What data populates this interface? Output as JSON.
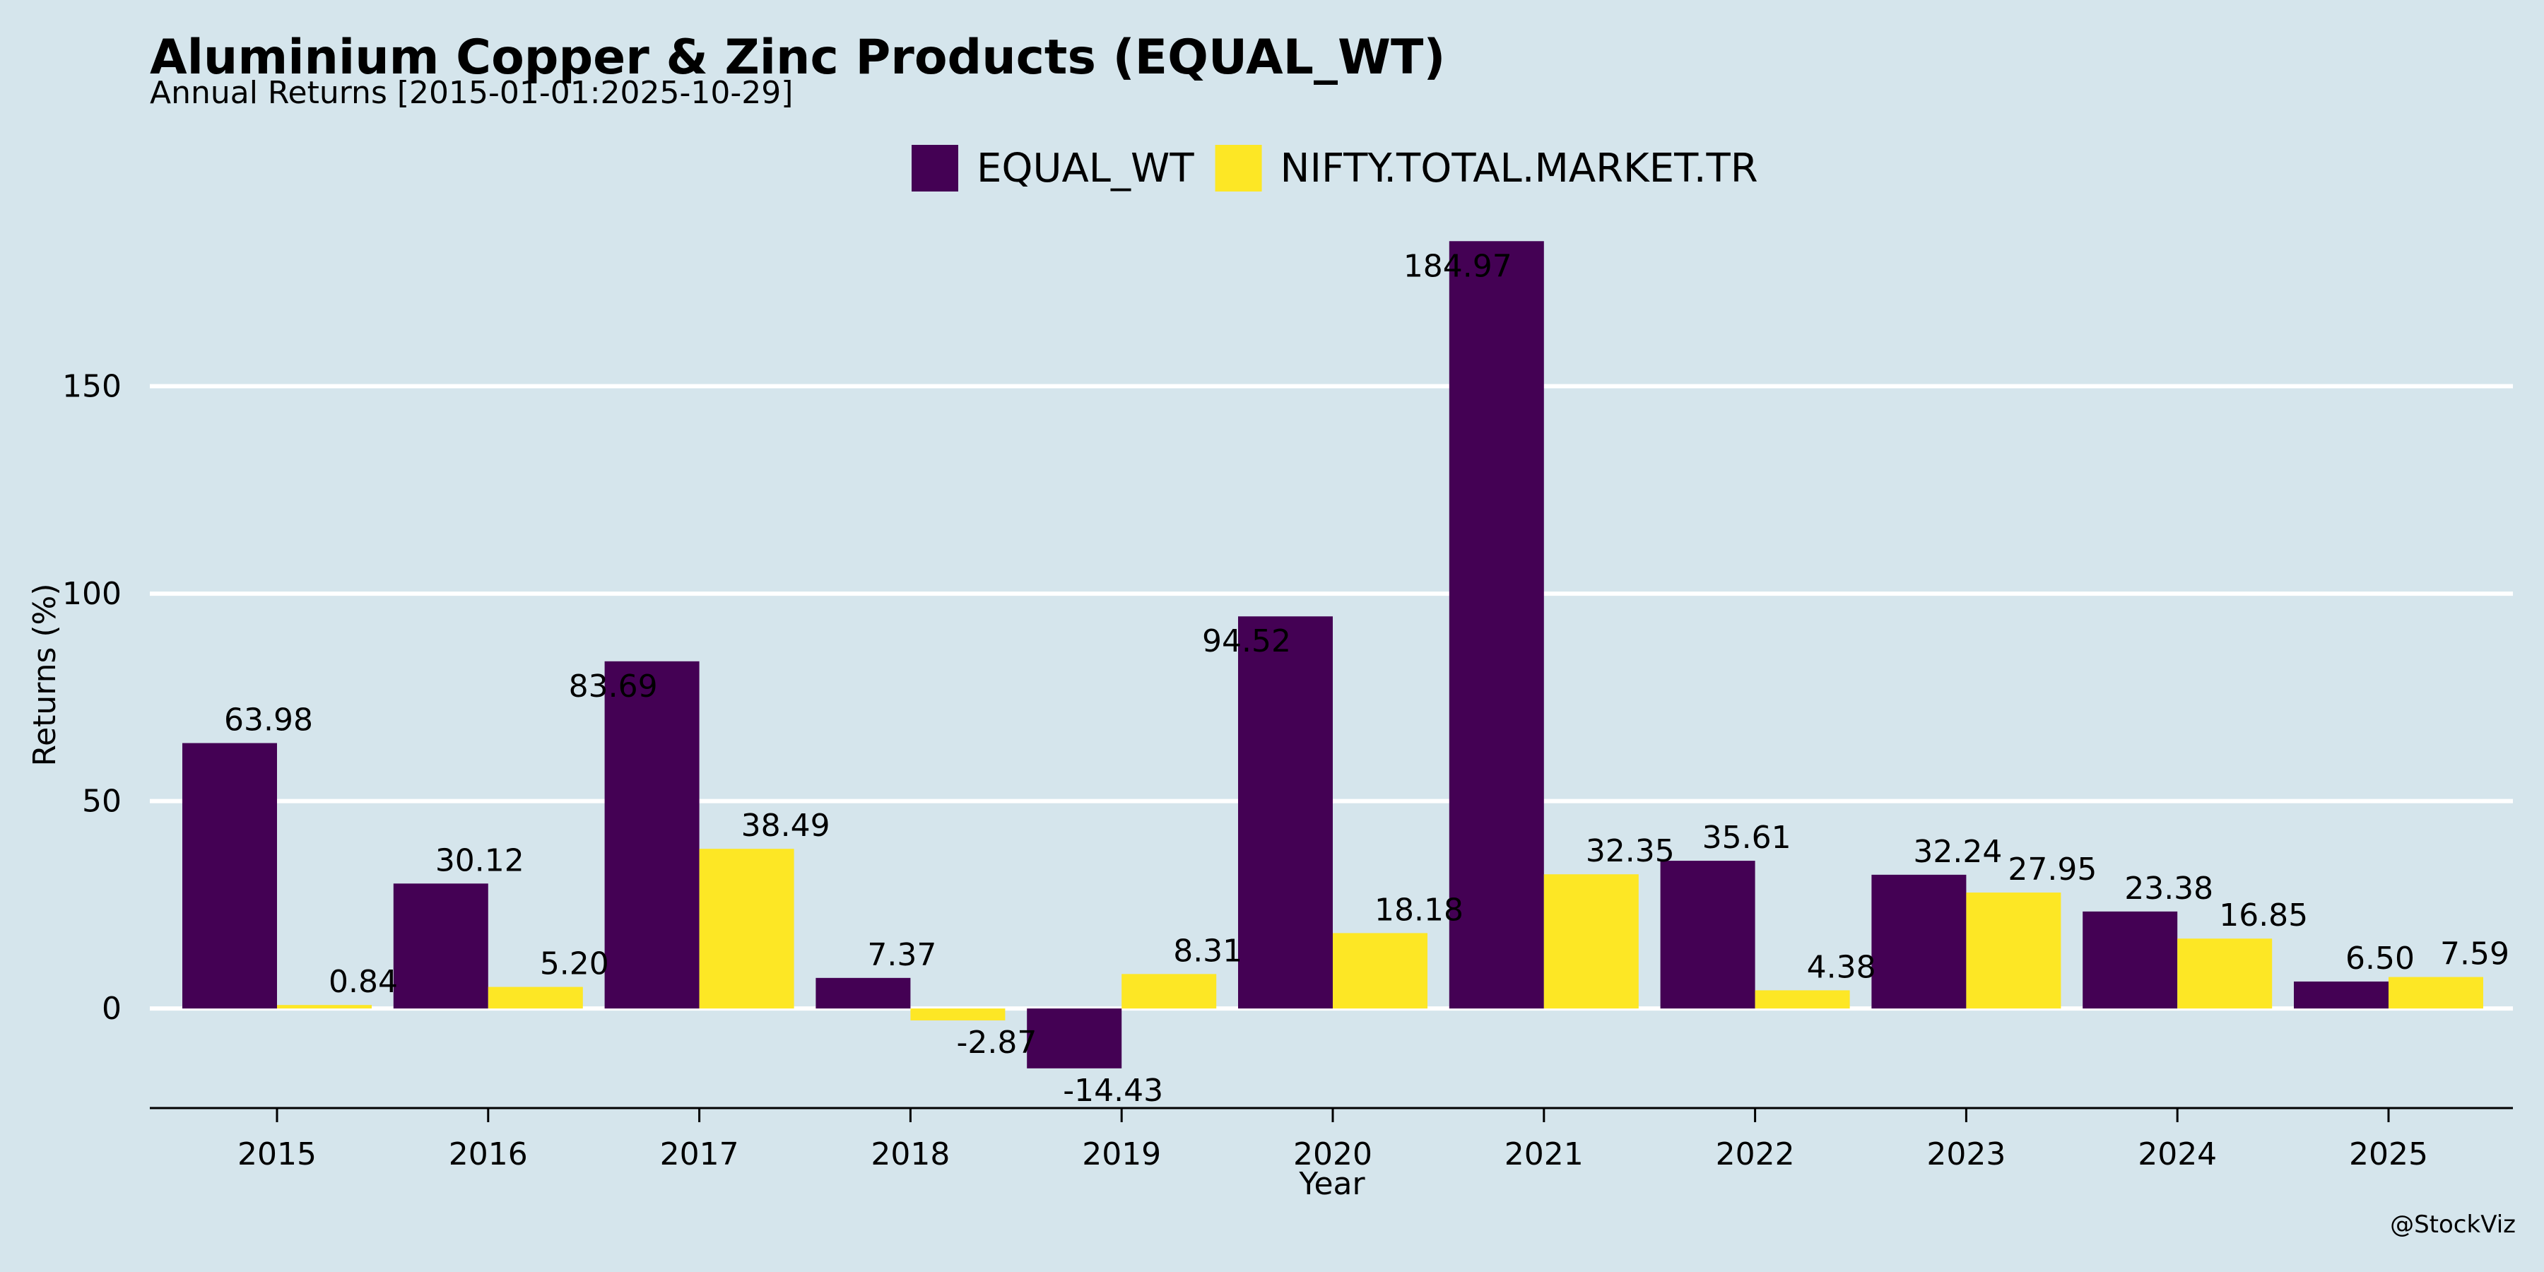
{
  "chart_data": {
    "type": "bar",
    "title": "Aluminium Copper & Zinc Products (EQUAL_WT)",
    "subtitle": "Annual Returns [2015-01-01:2025-10-29]",
    "xlabel": "Year",
    "ylabel": "Returns (%)",
    "credit": "@StockViz",
    "categories": [
      "2015",
      "2016",
      "2017",
      "2018",
      "2019",
      "2020",
      "2021",
      "2022",
      "2023",
      "2024",
      "2025"
    ],
    "series": [
      {
        "name": "EQUAL_WT",
        "color": "#440154",
        "values": [
          63.98,
          30.12,
          83.69,
          7.37,
          -14.43,
          94.52,
          184.97,
          35.61,
          32.24,
          23.38,
          6.5
        ],
        "labels": [
          "63.98",
          "30.12",
          "83.69",
          "7.37",
          "-14.43",
          "94.52",
          "184.97",
          "35.61",
          "32.24",
          "23.38",
          "6.50"
        ]
      },
      {
        "name": "NIFTY.TOTAL.MARKET.TR",
        "color": "#fde725",
        "values": [
          0.84,
          5.2,
          38.49,
          -2.87,
          8.31,
          18.18,
          32.35,
          4.38,
          27.95,
          16.85,
          7.59
        ],
        "labels": [
          "0.84",
          "5.20",
          "38.49",
          "-2.87",
          "8.31",
          "18.18",
          "32.35",
          "4.38",
          "27.95",
          "16.85",
          "7.59"
        ]
      }
    ],
    "yticks": [
      0,
      50,
      100,
      150
    ],
    "ylim": [
      -24,
      192
    ],
    "grid": true,
    "legend": "top-center"
  }
}
